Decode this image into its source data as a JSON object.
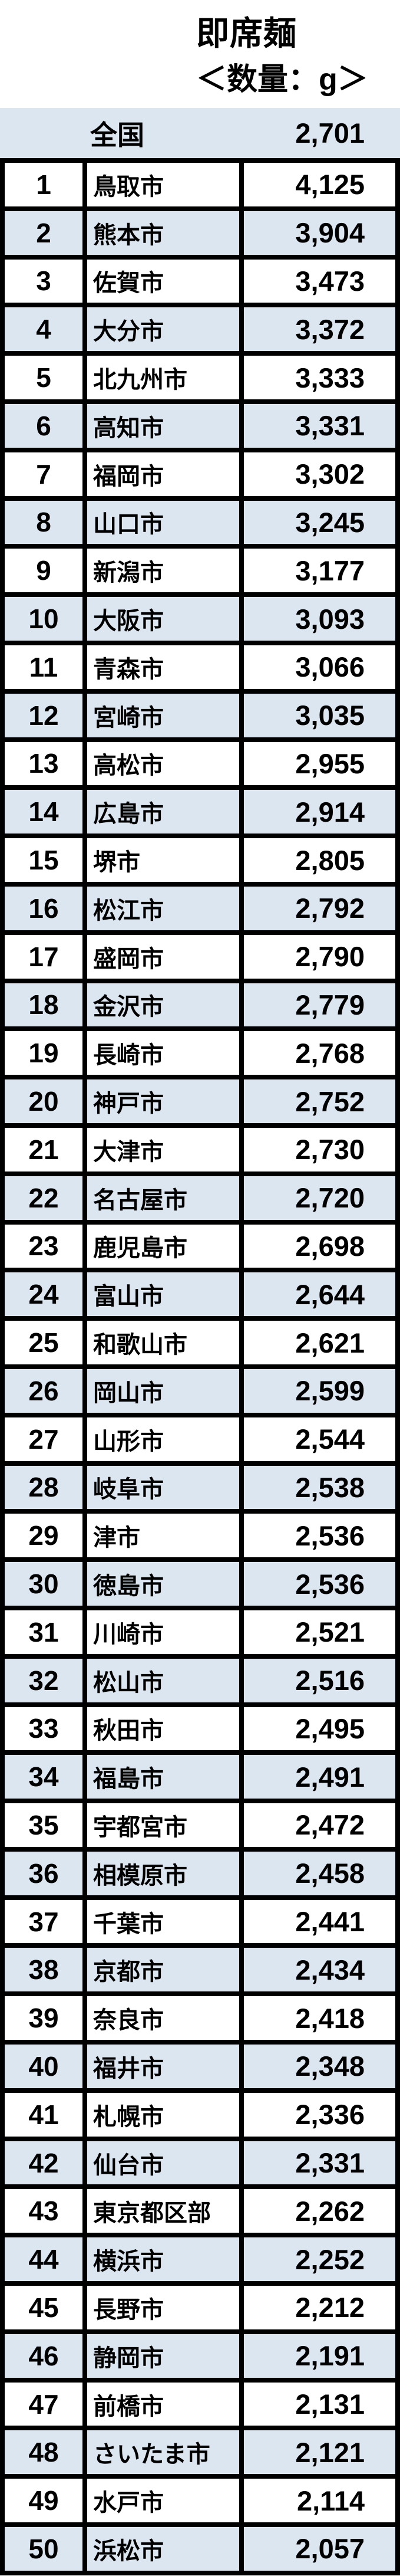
{
  "header": {
    "title": "即席麺",
    "subtitle": "＜数量：g＞"
  },
  "national": {
    "label": "全国",
    "value": "2,701"
  },
  "table": {
    "rows": [
      {
        "rank": "1",
        "city": "鳥取市",
        "value": "4,125"
      },
      {
        "rank": "2",
        "city": "熊本市",
        "value": "3,904"
      },
      {
        "rank": "3",
        "city": "佐賀市",
        "value": "3,473"
      },
      {
        "rank": "4",
        "city": "大分市",
        "value": "3,372"
      },
      {
        "rank": "5",
        "city": "北九州市",
        "value": "3,333"
      },
      {
        "rank": "6",
        "city": "高知市",
        "value": "3,331"
      },
      {
        "rank": "7",
        "city": "福岡市",
        "value": "3,302"
      },
      {
        "rank": "8",
        "city": "山口市",
        "value": "3,245"
      },
      {
        "rank": "9",
        "city": "新潟市",
        "value": "3,177"
      },
      {
        "rank": "10",
        "city": "大阪市",
        "value": "3,093"
      },
      {
        "rank": "11",
        "city": "青森市",
        "value": "3,066"
      },
      {
        "rank": "12",
        "city": "宮崎市",
        "value": "3,035"
      },
      {
        "rank": "13",
        "city": "高松市",
        "value": "2,955"
      },
      {
        "rank": "14",
        "city": "広島市",
        "value": "2,914"
      },
      {
        "rank": "15",
        "city": "堺市",
        "value": "2,805"
      },
      {
        "rank": "16",
        "city": "松江市",
        "value": "2,792"
      },
      {
        "rank": "17",
        "city": "盛岡市",
        "value": "2,790"
      },
      {
        "rank": "18",
        "city": "金沢市",
        "value": "2,779"
      },
      {
        "rank": "19",
        "city": "長崎市",
        "value": "2,768"
      },
      {
        "rank": "20",
        "city": "神戸市",
        "value": "2,752"
      },
      {
        "rank": "21",
        "city": "大津市",
        "value": "2,730"
      },
      {
        "rank": "22",
        "city": "名古屋市",
        "value": "2,720"
      },
      {
        "rank": "23",
        "city": "鹿児島市",
        "value": "2,698"
      },
      {
        "rank": "24",
        "city": "富山市",
        "value": "2,644"
      },
      {
        "rank": "25",
        "city": "和歌山市",
        "value": "2,621"
      },
      {
        "rank": "26",
        "city": "岡山市",
        "value": "2,599"
      },
      {
        "rank": "27",
        "city": "山形市",
        "value": "2,544"
      },
      {
        "rank": "28",
        "city": "岐阜市",
        "value": "2,538"
      },
      {
        "rank": "29",
        "city": "津市",
        "value": "2,536"
      },
      {
        "rank": "30",
        "city": "徳島市",
        "value": "2,536"
      },
      {
        "rank": "31",
        "city": "川崎市",
        "value": "2,521"
      },
      {
        "rank": "32",
        "city": "松山市",
        "value": "2,516"
      },
      {
        "rank": "33",
        "city": "秋田市",
        "value": "2,495"
      },
      {
        "rank": "34",
        "city": "福島市",
        "value": "2,491"
      },
      {
        "rank": "35",
        "city": "宇都宮市",
        "value": "2,472"
      },
      {
        "rank": "36",
        "city": "相模原市",
        "value": "2,458"
      },
      {
        "rank": "37",
        "city": "千葉市",
        "value": "2,441"
      },
      {
        "rank": "38",
        "city": "京都市",
        "value": "2,434"
      },
      {
        "rank": "39",
        "city": "奈良市",
        "value": "2,418"
      },
      {
        "rank": "40",
        "city": "福井市",
        "value": "2,348"
      },
      {
        "rank": "41",
        "city": "札幌市",
        "value": "2,336"
      },
      {
        "rank": "42",
        "city": "仙台市",
        "value": "2,331"
      },
      {
        "rank": "43",
        "city": "東京都区部",
        "value": "2,262"
      },
      {
        "rank": "44",
        "city": "横浜市",
        "value": "2,252"
      },
      {
        "rank": "45",
        "city": "長野市",
        "value": "2,212"
      },
      {
        "rank": "46",
        "city": "静岡市",
        "value": "2,191"
      },
      {
        "rank": "47",
        "city": "前橋市",
        "value": "2,131"
      },
      {
        "rank": "48",
        "city": "さいたま市",
        "value": "2,121"
      },
      {
        "rank": "49",
        "city": "水戸市",
        "value": "2,114"
      },
      {
        "rank": "50",
        "city": "浜松市",
        "value": "2,057"
      }
    ]
  },
  "colors": {
    "accent_row_bg": "#dce6f1",
    "border": "#000000",
    "text": "#000000",
    "page_bg": "#ffffff"
  },
  "chart_data": {
    "type": "table",
    "title": "即席麺",
    "subtitle": "＜数量：g＞",
    "unit": "g",
    "national_label": "全国",
    "national_value": 2701,
    "columns": [
      "rank",
      "city",
      "quantity_g"
    ],
    "categories": [
      "鳥取市",
      "熊本市",
      "佐賀市",
      "大分市",
      "北九州市",
      "高知市",
      "福岡市",
      "山口市",
      "新潟市",
      "大阪市",
      "青森市",
      "宮崎市",
      "高松市",
      "広島市",
      "堺市",
      "松江市",
      "盛岡市",
      "金沢市",
      "長崎市",
      "神戸市",
      "大津市",
      "名古屋市",
      "鹿児島市",
      "富山市",
      "和歌山市",
      "岡山市",
      "山形市",
      "岐阜市",
      "津市",
      "徳島市",
      "川崎市",
      "松山市",
      "秋田市",
      "福島市",
      "宇都宮市",
      "相模原市",
      "千葉市",
      "京都市",
      "奈良市",
      "福井市",
      "札幌市",
      "仙台市",
      "東京都区部",
      "横浜市",
      "長野市",
      "静岡市",
      "前橋市",
      "さいたま市",
      "水戸市",
      "浜松市"
    ],
    "values": [
      4125,
      3904,
      3473,
      3372,
      3333,
      3331,
      3302,
      3245,
      3177,
      3093,
      3066,
      3035,
      2955,
      2914,
      2805,
      2792,
      2790,
      2779,
      2768,
      2752,
      2730,
      2720,
      2698,
      2644,
      2621,
      2599,
      2544,
      2538,
      2536,
      2536,
      2521,
      2516,
      2495,
      2491,
      2472,
      2458,
      2441,
      2434,
      2418,
      2348,
      2336,
      2331,
      2262,
      2252,
      2212,
      2191,
      2131,
      2121,
      2114,
      2057
    ],
    "layout": {
      "row_striping": "even ranks highlighted #dce6f1",
      "grid": "thick black borders",
      "value_alignment": "right",
      "legend": "none"
    }
  }
}
